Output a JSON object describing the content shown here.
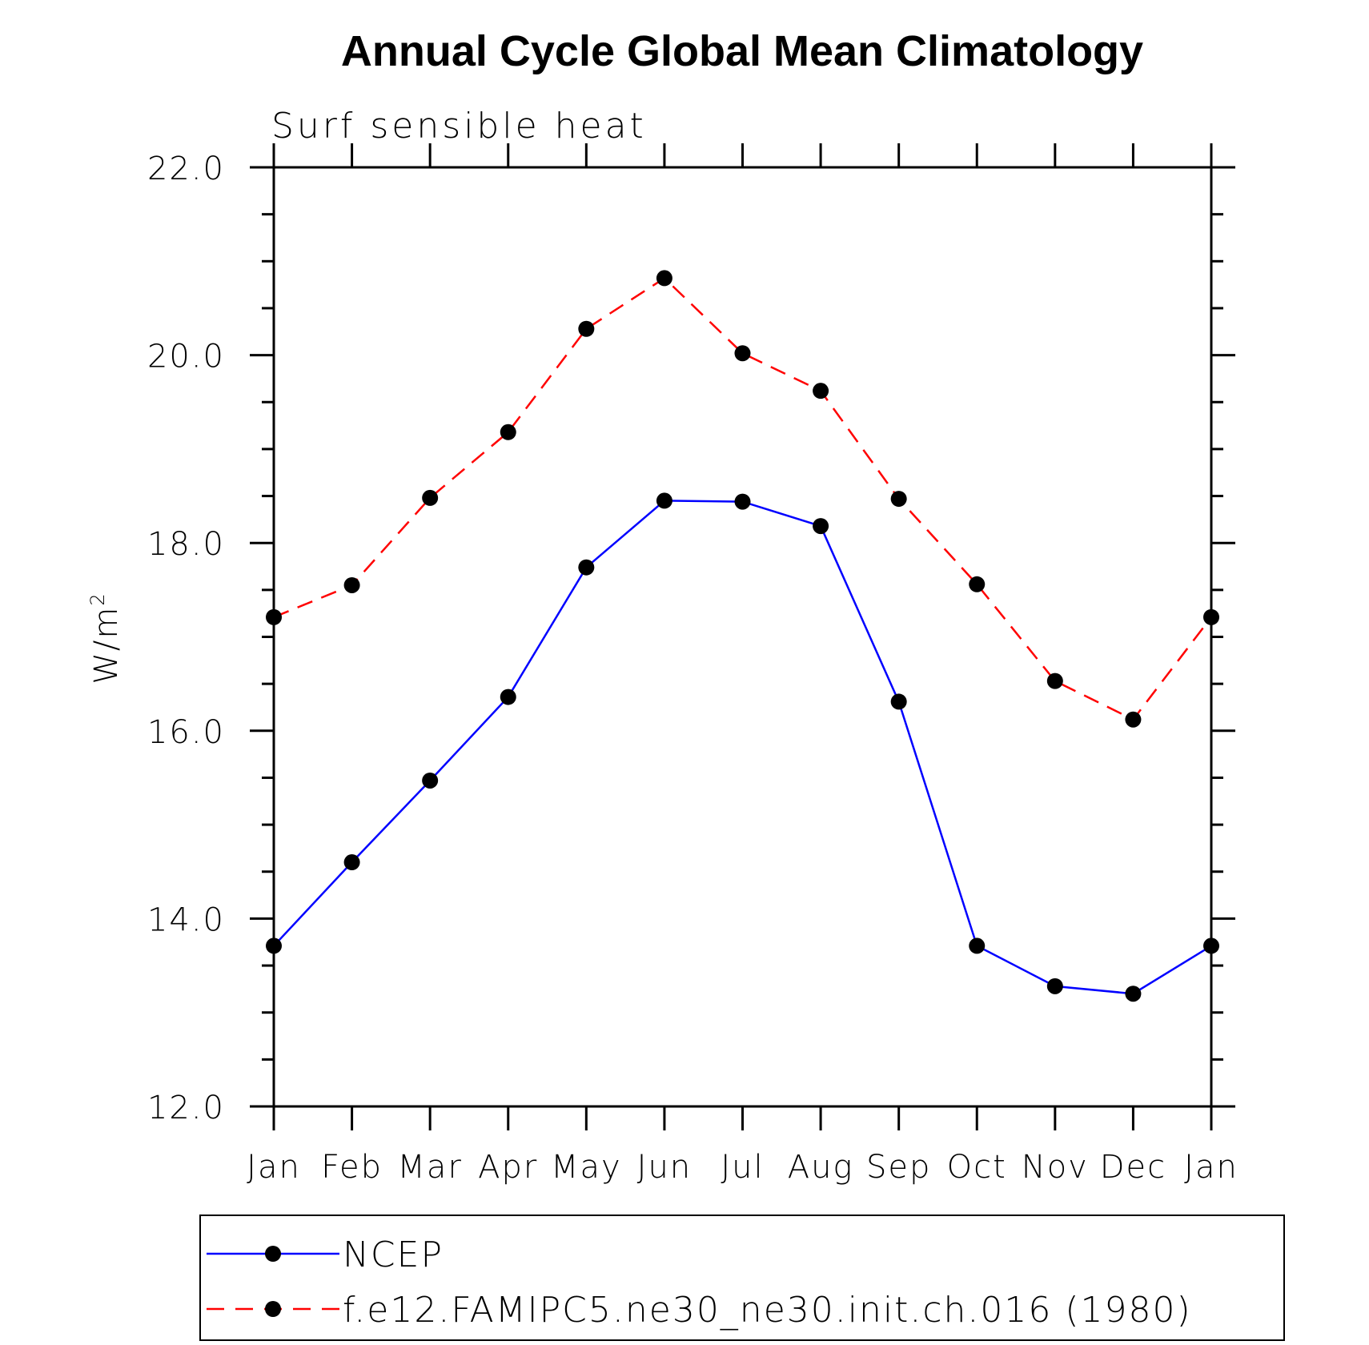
{
  "chart_data": {
    "type": "line",
    "title": "Annual Cycle Global Mean Climatology",
    "subtitle": "Surf sensible heat",
    "xlabel": "",
    "ylabel": "W/m",
    "ylabel_superscript": "2",
    "ylim": [
      12.0,
      22.0
    ],
    "yticks": [
      "12.0",
      "14.0",
      "16.0",
      "18.0",
      "20.0",
      "22.0"
    ],
    "ytick_values": [
      12,
      14,
      16,
      18,
      20,
      22
    ],
    "categories": [
      "Jan",
      "Feb",
      "Mar",
      "Apr",
      "May",
      "Jun",
      "Jul",
      "Aug",
      "Sep",
      "Oct",
      "Nov",
      "Dec",
      "Jan"
    ],
    "grid": false,
    "legend_position": "bottom",
    "series": [
      {
        "name": "NCEP",
        "color": "#0000ff",
        "dash": "solid",
        "values": [
          13.71,
          14.6,
          15.47,
          16.36,
          17.74,
          18.45,
          18.44,
          18.18,
          16.31,
          13.71,
          13.28,
          13.2,
          13.71
        ]
      },
      {
        "name": "f.e12.FAMIPC5.ne30_ne30.init.ch.016 (1980)",
        "color": "#ff0000",
        "dash": "dashed",
        "values": [
          17.21,
          17.55,
          18.48,
          19.18,
          20.28,
          20.82,
          20.02,
          19.62,
          18.47,
          17.56,
          16.53,
          16.12,
          17.21
        ]
      }
    ]
  }
}
